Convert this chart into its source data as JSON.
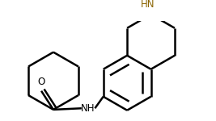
{
  "background_color": "#ffffff",
  "line_color": "#000000",
  "hn_amide_color": "#000000",
  "hn_ring_color": "#8B6400",
  "bond_lw": 1.8,
  "figsize": [
    2.67,
    1.5
  ],
  "dpi": 100,
  "o_label": "O",
  "nh_amide_label": "NH",
  "hn_ring_label": "HN"
}
